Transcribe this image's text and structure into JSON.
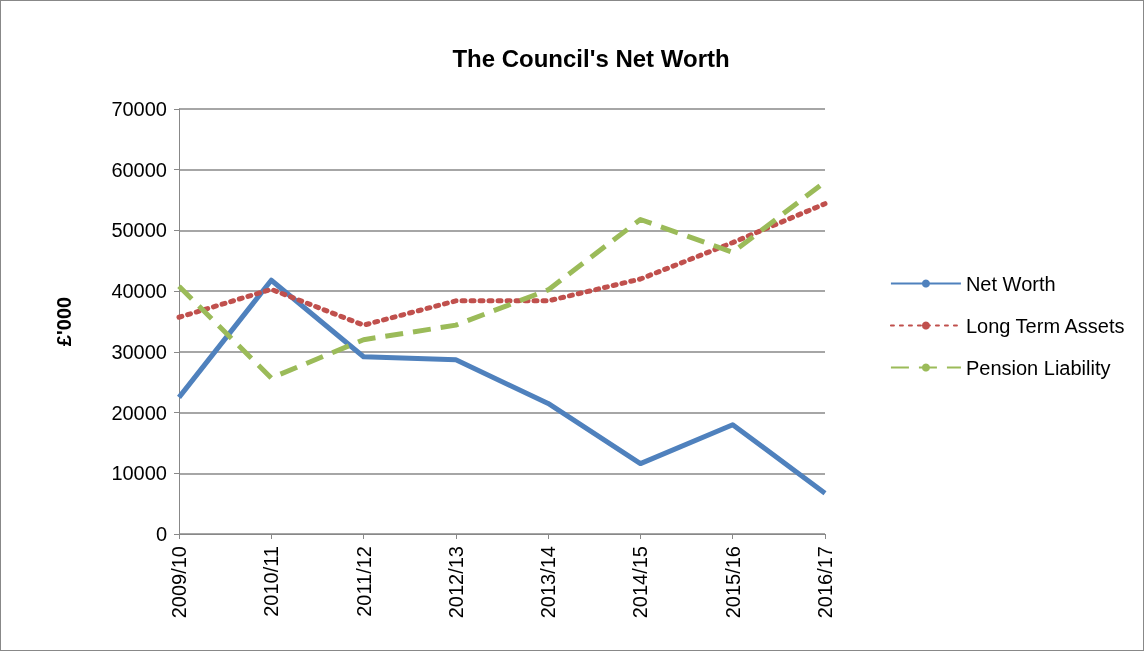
{
  "chart_data": {
    "type": "line",
    "title": "The Council's Net Worth",
    "ylabel": "£'000",
    "categories": [
      "2009/10",
      "2010/11",
      "2011/12",
      "2012/13",
      "2013/14",
      "2014/15",
      "2015/16",
      "2016/17"
    ],
    "series": [
      {
        "name": "Net Worth",
        "color": "#4f81bd",
        "line_style": "solid",
        "values": [
          22500,
          41800,
          29200,
          28700,
          21500,
          11600,
          18000,
          6700
        ]
      },
      {
        "name": "Long Term Assets",
        "color": "#c0504d",
        "line_style": "dotted",
        "values": [
          35700,
          40300,
          34400,
          38400,
          38400,
          42000,
          48000,
          54400
        ]
      },
      {
        "name": "Pension Liability",
        "color": "#9bbb59",
        "line_style": "dashed",
        "values": [
          40800,
          25700,
          32000,
          34400,
          40200,
          51800,
          46400,
          58000
        ]
      }
    ],
    "ylim": [
      0,
      70000
    ],
    "yticks": [
      0,
      10000,
      20000,
      30000,
      40000,
      50000,
      60000,
      70000
    ],
    "grid": "y",
    "legend": "right",
    "marker": "none"
  }
}
